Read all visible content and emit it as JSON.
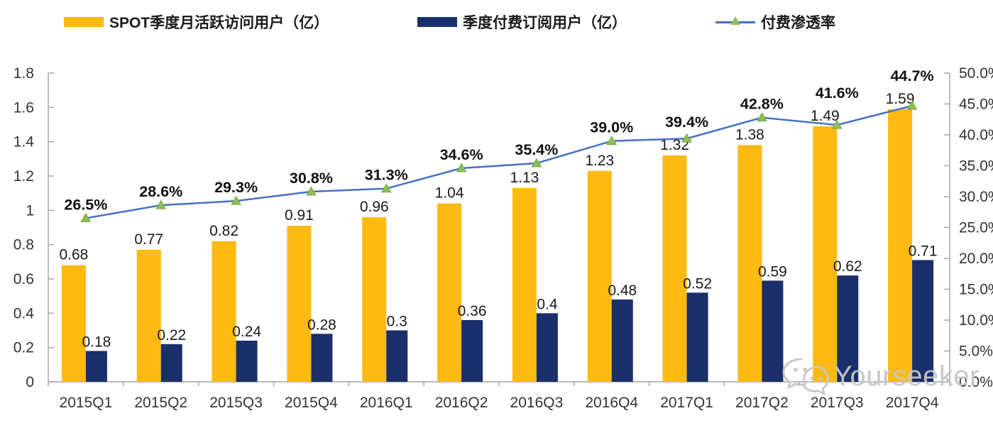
{
  "legend": {
    "items": [
      {
        "label": "SPOT季度月活跃访问用户（亿）",
        "color": "#FCBA12",
        "marker": "bar"
      },
      {
        "label": "季度付费订阅用户（亿）",
        "color": "#1A2F6B",
        "marker": "bar"
      },
      {
        "label": "付费渗透率",
        "color": "#4472C4",
        "marker": "line",
        "marker_color": "#8FBE55"
      }
    ]
  },
  "chart_data": {
    "type": "combo-bar-line",
    "categories": [
      "2015Q1",
      "2015Q2",
      "2015Q3",
      "2015Q4",
      "2016Q1",
      "2016Q2",
      "2016Q3",
      "2016Q4",
      "2017Q1",
      "2017Q2",
      "2017Q3",
      "2017Q4"
    ],
    "series": [
      {
        "name": "SPOT季度月活跃访问用户（亿）",
        "type": "bar",
        "axis": "left",
        "color": "#FCBA12",
        "values": [
          0.68,
          0.77,
          0.82,
          0.91,
          0.96,
          1.04,
          1.13,
          1.23,
          1.32,
          1.38,
          1.49,
          1.59
        ]
      },
      {
        "name": "季度付费订阅用户（亿）",
        "type": "bar",
        "axis": "left",
        "color": "#1A2F6B",
        "values": [
          0.18,
          0.22,
          0.24,
          0.28,
          0.3,
          0.36,
          0.4,
          0.48,
          0.52,
          0.59,
          0.62,
          0.71
        ]
      },
      {
        "name": "付费渗透率",
        "type": "line",
        "axis": "right",
        "color": "#4472C4",
        "marker": "triangle",
        "marker_color": "#8FBE55",
        "values": [
          26.5,
          28.6,
          29.3,
          30.8,
          31.3,
          34.6,
          35.4,
          39.0,
          39.4,
          42.8,
          41.6,
          44.7
        ],
        "labels": [
          "26.5%",
          "28.6%",
          "29.3%",
          "30.8%",
          "31.3%",
          "34.6%",
          "35.4%",
          "39.0%",
          "39.4%",
          "42.8%",
          "41.6%",
          "44.7%"
        ]
      }
    ],
    "left_axis": {
      "min": 0,
      "max": 1.8,
      "tick_labels": [
        "0",
        "0.2",
        "0.4",
        "0.6",
        "0.8",
        "1",
        "1.2",
        "1.4",
        "1.6",
        "1.8"
      ]
    },
    "right_axis": {
      "min": 0,
      "max": 50,
      "tick_labels": [
        "0.0%",
        "5.0%",
        "10.0%",
        "15.0%",
        "20.0%",
        "25.0%",
        "30.0%",
        "35.0%",
        "40.0%",
        "45.0%",
        "50.0%"
      ]
    },
    "grid": false,
    "legend_position": "top",
    "axis_color": "#A6A6A6"
  },
  "watermark": {
    "text": "Yourseeker",
    "icon": "wechat-icon"
  }
}
